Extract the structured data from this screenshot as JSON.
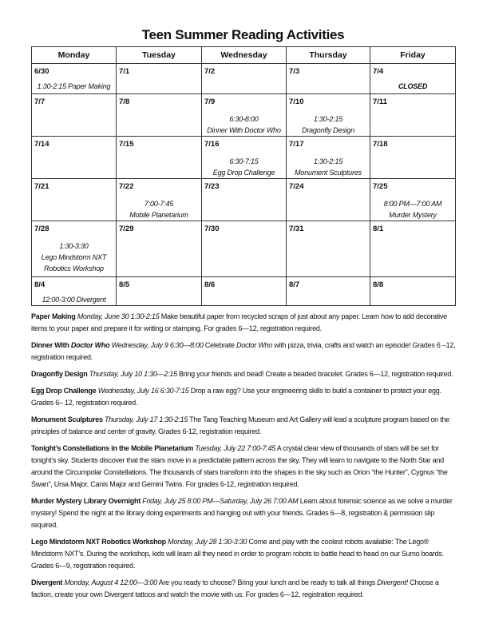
{
  "title": "Teen Summer Reading Activities",
  "calendar": {
    "days": [
      "Monday",
      "Tuesday",
      "Wednesday",
      "Thursday",
      "Friday"
    ],
    "weeks": [
      [
        {
          "date": "6/30",
          "lines": [
            "1:30-2:15 Paper Making"
          ]
        },
        {
          "date": "7/1",
          "lines": []
        },
        {
          "date": "7/2",
          "lines": []
        },
        {
          "date": "7/3",
          "lines": []
        },
        {
          "date": "7/4",
          "lines": [
            "CLOSED"
          ],
          "bold": true
        }
      ],
      [
        {
          "date": "7/7",
          "lines": []
        },
        {
          "date": "7/8",
          "lines": []
        },
        {
          "date": "7/9",
          "lines": [
            "6:30-8:00",
            "Dinner With Doctor Who"
          ],
          "offset": true
        },
        {
          "date": "7/10",
          "lines": [
            "1:30-2:15",
            "Dragonfly Design"
          ],
          "offset": true
        },
        {
          "date": "7/11",
          "lines": []
        }
      ],
      [
        {
          "date": "7/14",
          "lines": []
        },
        {
          "date": "7/15",
          "lines": []
        },
        {
          "date": "7/16",
          "lines": [
            "6:30-7:15",
            "Egg Drop Challenge"
          ]
        },
        {
          "date": "7/17",
          "lines": [
            "1:30-2:15",
            "Monument Sculptures"
          ]
        },
        {
          "date": "7/18",
          "lines": []
        }
      ],
      [
        {
          "date": "7/21",
          "lines": []
        },
        {
          "date": "7/22",
          "lines": [
            "7:00-7:45",
            "Mobile Planetarium"
          ]
        },
        {
          "date": "7/23",
          "lines": []
        },
        {
          "date": "7/24",
          "lines": []
        },
        {
          "date": "7/25",
          "lines": [
            "8:00 PM—7:00 AM",
            "Murder Mystery"
          ]
        }
      ],
      [
        {
          "date": "7/28",
          "lines": [
            "1:30-3:30",
            "Lego Mindstorm  NXT",
            "Robotics Workshop"
          ]
        },
        {
          "date": "7/29",
          "lines": []
        },
        {
          "date": "7/30",
          "lines": []
        },
        {
          "date": "7/31",
          "lines": []
        },
        {
          "date": "8/1",
          "lines": []
        }
      ],
      [
        {
          "date": "8/4",
          "lines": [
            "12:00-3:00 Divergent"
          ]
        },
        {
          "date": "8/5",
          "lines": []
        },
        {
          "date": "8/6",
          "lines": []
        },
        {
          "date": "8/7",
          "lines": []
        },
        {
          "date": "8/8",
          "lines": []
        }
      ]
    ]
  },
  "descriptions": [
    [
      {
        "t": "Paper Making",
        "s": "b"
      },
      {
        "t": " Monday, June 30 1:30-2:15",
        "s": "i"
      },
      {
        "t": " Make beautiful paper from recycled scraps of just about any paper.  Learn how to add decorative items to your paper and prepare it for writing or stamping.  For grades 6—12, registration required.",
        "s": ""
      }
    ],
    [
      {
        "t": "Dinner With ",
        "s": "b"
      },
      {
        "t": "Doctor Who",
        "s": "bi"
      },
      {
        "t": " Wednesday, July 9 6:30—8:00",
        "s": "i"
      },
      {
        "t": " Celebrate ",
        "s": ""
      },
      {
        "t": "Doctor Who",
        "s": "i"
      },
      {
        "t": " with pizza, trivia, crafts and watch an episode! Grades 6 –12, registration required.",
        "s": ""
      }
    ],
    [
      {
        "t": "Dragonfly Design",
        "s": "b"
      },
      {
        "t": " Thursday, July 10 1:30—2:15",
        "s": "i"
      },
      {
        "t": " Bring your friends and bead!  Create a beaded bracelet.  Grades 6—12, registration required.",
        "s": ""
      }
    ],
    [
      {
        "t": "Egg Drop Challenge",
        "s": "b"
      },
      {
        "t": " Wednesday, July 16 6:30-7:15",
        "s": "i"
      },
      {
        "t": "  Drop a raw egg?  Use your engineering skills to build a container to protect your egg.  Grades 6– 12, registration required.",
        "s": ""
      }
    ],
    [
      {
        "t": "Monument Sculptures",
        "s": "b"
      },
      {
        "t": " Thursday, July 17 1:30-2:15",
        "s": "i"
      },
      {
        "t": " The Tang Teaching Museum and Art Gallery will lead a sculpture program based on the principles of balance and center of gravity.  Grades 6-12, registration required.",
        "s": ""
      }
    ],
    [
      {
        "t": "Tonight’s Constellations in the Mobile Planetarium",
        "s": "b"
      },
      {
        "t": " Tuesday, July 22 7:00-7:45",
        "s": "i"
      },
      {
        "t": " A crystal clear view of thousands of stars will be set for tonight’s sky.  Students discover that the stars move in a predictable pattern across the sky.  They will learn to navigate to the North Star and around the Circumpolar Constellations.  The thousands of stars transform into the shapes in the sky such as Orion “the Hunter”, Cygnus “the Swan”, Ursa Major, Canis Major and Gemini Twins. For grades 6-12, registration required.",
        "s": ""
      }
    ],
    [
      {
        "t": "Murder Mystery Library Overnight",
        "s": "b"
      },
      {
        "t": " Friday, July 25 8:00 PM—Saturday, July 26 7:00 AM",
        "s": "i"
      },
      {
        "t": " Learn about forensic science as we solve a murder mystery!  Spend the night at the library doing experiments and hanging out with your friends.  Grades 6—8, registration & permission slip required.",
        "s": ""
      }
    ],
    [
      {
        "t": "Lego Mindstorm NXT Robotics Workshop",
        "s": "b"
      },
      {
        "t": " Monday, July 28 1:30-3:30",
        "s": "i"
      },
      {
        "t": " Come and play with the coolest robots available: The Lego® Mindstorm NXT’s. During the workshop, kids will learn all they need in order to program robots to battle head to head on our Sumo boards.  Grades 6—9, registration required.",
        "s": ""
      }
    ],
    [
      {
        "t": "Divergent",
        "s": "b"
      },
      {
        "t": " Monday, August 4 12:00—3:00",
        "s": "i"
      },
      {
        "t": " Are you ready to choose?  Bring your lunch and be ready to talk all things ",
        "s": ""
      },
      {
        "t": "Divergent!",
        "s": "i"
      },
      {
        "t": " Choose a faction, create your own Divergent tattoos and watch the movie with us.  For grades 6—12, registration required.",
        "s": ""
      }
    ]
  ]
}
